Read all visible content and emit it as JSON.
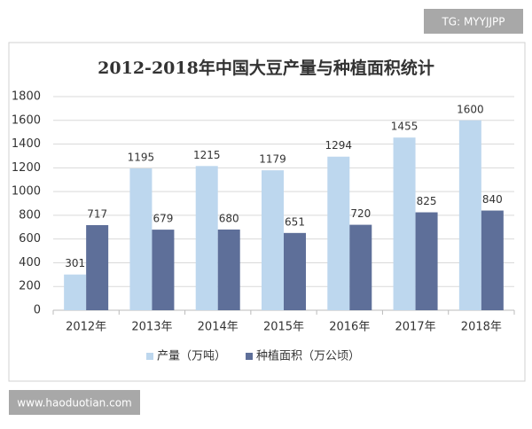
{
  "chart_data": {
    "type": "bar",
    "title": "2012-2018年中国大豆产量与种植面积统计",
    "categories": [
      "2012年",
      "2013年",
      "2014年",
      "2015年",
      "2016年",
      "2017年",
      "2018年"
    ],
    "series": [
      {
        "name": "产量（万吨）",
        "color": "#bdd7ee",
        "values": [
          301,
          1195,
          1215,
          1179,
          1294,
          1455,
          1600
        ]
      },
      {
        "name": "种植面积（万公顷）",
        "color": "#5e6f99",
        "values": [
          717,
          679,
          680,
          651,
          720,
          825,
          840
        ]
      }
    ],
    "ylim": [
      0,
      1800
    ],
    "yticks": [
      0,
      200,
      400,
      600,
      800,
      1000,
      1200,
      1400,
      1600,
      1800
    ],
    "grid": true,
    "legend": "bottom"
  },
  "watermarks": {
    "top": "TG: MYYJJPP",
    "bottom": "www.haoduotian.com"
  }
}
